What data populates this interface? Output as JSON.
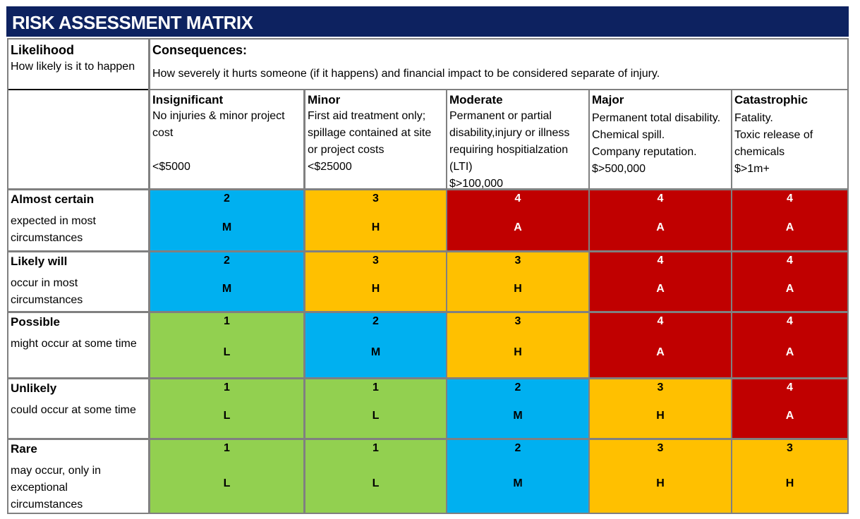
{
  "title": "RISK ASSESSMENT MATRIX",
  "likelihood_header": {
    "label": "Likelihood",
    "description": "How likely is it to happen"
  },
  "consequences_header": {
    "label": "Consequences:",
    "description": "How severely it hurts someone (if it happens) and financial impact to be considered separate of injury."
  },
  "consequences": [
    {
      "name": "Insignificant",
      "description": "No injuries & minor project cost\n\n<$5000"
    },
    {
      "name": "Minor",
      "description": "First aid treatment only; spillage contained at site or project costs\n <$25000"
    },
    {
      "name": "Moderate",
      "description": "Permanent or partial disability,injury or illness requiring hospitialzation (LTI)\n$>100,000"
    },
    {
      "name": "Major",
      "description": "Permanent total disability.\nChemical spill.\nCompany reputation.\n$>500,000"
    },
    {
      "name": "Catastrophic",
      "description": "Fatality.\nToxic release of chemicals\n$>1m+"
    }
  ],
  "likelihoods": [
    {
      "name": "Almost certain",
      "description": "expected in most circumstances",
      "cells": [
        {
          "score": "2",
          "level": "M"
        },
        {
          "score": "3",
          "level": "H"
        },
        {
          "score": "4",
          "level": "A"
        },
        {
          "score": "4",
          "level": "A"
        },
        {
          "score": "4",
          "level": "A"
        }
      ]
    },
    {
      "name": "Likely will",
      "description": "occur in most circumstances",
      "cells": [
        {
          "score": "2",
          "level": "M"
        },
        {
          "score": "3",
          "level": "H"
        },
        {
          "score": "3",
          "level": "H"
        },
        {
          "score": "4",
          "level": "A"
        },
        {
          "score": "4",
          "level": "A"
        }
      ]
    },
    {
      "name": "Possible",
      "description": "might occur at some time",
      "cells": [
        {
          "score": "1",
          "level": "L"
        },
        {
          "score": "2",
          "level": "M"
        },
        {
          "score": "3",
          "level": "H"
        },
        {
          "score": "4",
          "level": "A"
        },
        {
          "score": "4",
          "level": "A"
        }
      ]
    },
    {
      "name": "Unlikely",
      "description": "could occur at some time",
      "cells": [
        {
          "score": "1",
          "level": "L"
        },
        {
          "score": "1",
          "level": "L"
        },
        {
          "score": "2",
          "level": "M"
        },
        {
          "score": "3",
          "level": "H"
        },
        {
          "score": "4",
          "level": "A"
        }
      ]
    },
    {
      "name": "Rare",
      "description": "may occur, only in exceptional circumstances",
      "cells": [
        {
          "score": "1",
          "level": "L"
        },
        {
          "score": "1",
          "level": "L"
        },
        {
          "score": "2",
          "level": "M"
        },
        {
          "score": "3",
          "level": "H"
        },
        {
          "score": "3",
          "level": "H"
        }
      ]
    }
  ],
  "level_colors": {
    "L": "#92d050",
    "M": "#00b0f0",
    "H": "#ffc000",
    "A": "#c00000"
  },
  "header_color": "#0d2260"
}
